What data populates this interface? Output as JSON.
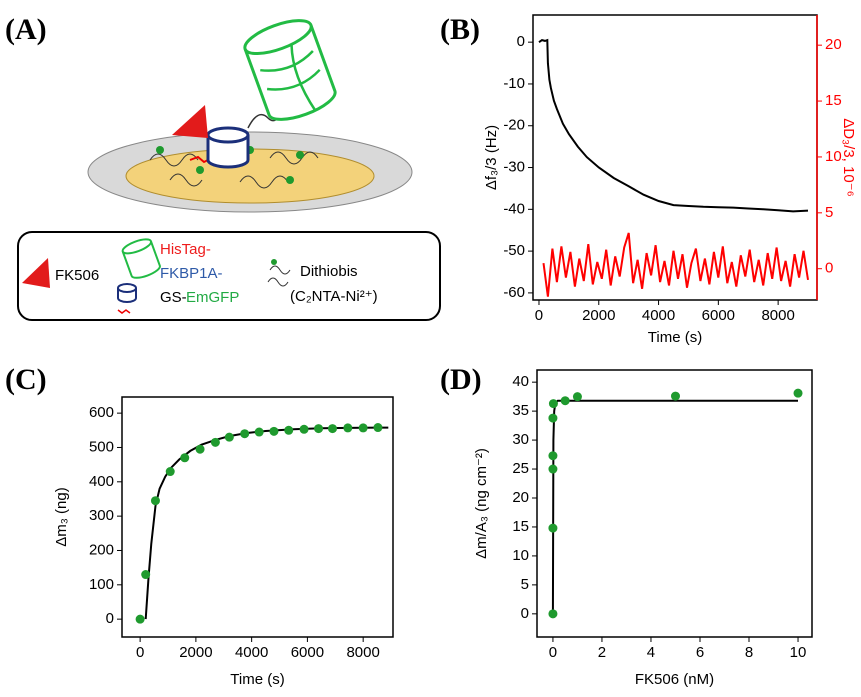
{
  "diagram": {
    "panel_label": "(A)",
    "legend": {
      "ligand": "FK506",
      "protein": [
        "HisTag-",
        "FKBP1A-",
        "GS-",
        "EmGFP"
      ],
      "linker": [
        "Dithiobis",
        "(C₂NTA-Ni²⁺)"
      ]
    }
  },
  "chart_data": [
    {
      "type": "line",
      "panel_label": "(B)",
      "x_label": "Time (s)",
      "y_label": "Δf₃/3 (Hz)",
      "y2_label": "ΔD₃/3, 10⁻⁶",
      "xlim": [
        -200,
        9300
      ],
      "xticks": [
        0,
        2000,
        4000,
        6000,
        8000
      ],
      "ylim": [
        -61.7,
        6.5
      ],
      "yticks": [
        -60,
        -50,
        -40,
        -30,
        -20,
        -10,
        0
      ],
      "y2lim": [
        -2.8,
        22.7
      ],
      "y2ticks": [
        0,
        5,
        10,
        15,
        20
      ],
      "y2color": "#ff0000",
      "series": [
        {
          "type": "line",
          "color": "#000000",
          "x": [
            0,
            100,
            200,
            280,
            300,
            350,
            400,
            500,
            600,
            800,
            1000,
            1300,
            1600,
            2000,
            2500,
            3000,
            3500,
            4000,
            4500,
            5000,
            5500,
            6000,
            6500,
            7000,
            7500,
            8000,
            8500,
            9000
          ],
          "values": [
            0,
            0.5,
            0.3,
            0.5,
            -5,
            -9,
            -11,
            -14,
            -16,
            -19.5,
            -22,
            -25,
            -27.5,
            -30,
            -32.5,
            -34.5,
            -36.5,
            -38,
            -39,
            -39.2,
            -39.4,
            -39.5,
            -39.6,
            -39.8,
            -40,
            -40.2,
            -40.5,
            -40.3
          ]
        },
        {
          "type": "line",
          "color": "#ff0000",
          "axis": "y2",
          "x": [
            150,
            300,
            450,
            600,
            750,
            900,
            1050,
            1200,
            1350,
            1500,
            1650,
            1800,
            1950,
            2100,
            2250,
            2400,
            2550,
            2700,
            2850,
            3000,
            3150,
            3300,
            3450,
            3600,
            3750,
            3900,
            4050,
            4200,
            4350,
            4500,
            4650,
            4800,
            4950,
            5100,
            5250,
            5400,
            5550,
            5700,
            5850,
            6000,
            6150,
            6300,
            6450,
            6600,
            6750,
            6900,
            7050,
            7200,
            7350,
            7500,
            7650,
            7800,
            7950,
            8100,
            8250,
            8400,
            8550,
            8700,
            8850,
            9000
          ],
          "values": [
            0.5,
            -2.5,
            1.8,
            -1.2,
            2.0,
            -0.8,
            1.5,
            -1.6,
            0.9,
            -1.1,
            2.2,
            -1.4,
            0.6,
            -0.9,
            1.7,
            -1.5,
            1.1,
            -0.7,
            1.9,
            3.2,
            -1.3,
            0.8,
            -1.8,
            1.4,
            -0.6,
            2.1,
            -1.2,
            0.7,
            -1.5,
            1.6,
            -0.9,
            1.3,
            -1.7,
            0.5,
            1.8,
            -1.1,
            0.9,
            -1.4,
            1.5,
            -0.8,
            2.0,
            -1.3,
            0.6,
            -1.6,
            1.2,
            -0.7,
            1.7,
            -1.2,
            0.8,
            -1.5,
            1.4,
            -0.9,
            1.9,
            -1.1,
            0.7,
            -1.6,
            1.3,
            -0.8,
            1.6,
            -1.0
          ]
        }
      ]
    },
    {
      "type": "scatter",
      "panel_label": "(C)",
      "x_label": "Time (s)",
      "y_label": "Δm₃ (ng)",
      "xlim": [
        -650,
        9070
      ],
      "xticks": [
        0,
        2000,
        4000,
        6000,
        8000
      ],
      "ylim": [
        -52,
        647
      ],
      "yticks": [
        0,
        100,
        200,
        300,
        400,
        500,
        600
      ],
      "series": [
        {
          "type": "line",
          "color": "#000000",
          "x": [
            200,
            250,
            300,
            400,
            550,
            700,
            900,
            1100,
            1400,
            1800,
            2200,
            2700,
            3200,
            3800,
            4500,
            5500,
            6500,
            7500,
            8500,
            8900
          ],
          "values": [
            0,
            60,
            120,
            220,
            330,
            380,
            415,
            440,
            465,
            490,
            508,
            522,
            533,
            542,
            548,
            553,
            556,
            557,
            558,
            558
          ]
        },
        {
          "type": "scatter",
          "color": "#1f9a2e",
          "x": [
            0,
            200,
            550,
            1080,
            1600,
            2150,
            2700,
            3200,
            3750,
            4270,
            4800,
            5330,
            5880,
            6400,
            6900,
            7450,
            8000,
            8530
          ],
          "values": [
            0,
            130,
            345,
            430,
            470,
            495,
            515,
            530,
            540,
            545,
            547,
            550,
            553,
            555,
            555,
            557,
            557,
            558
          ]
        }
      ]
    },
    {
      "type": "scatter",
      "panel_label": "(D)",
      "x_label": "FK506 (nM)",
      "y_label": "Δm/A₃ (ng cm⁻²)",
      "xlim": [
        -0.65,
        10.57
      ],
      "xticks": [
        0,
        2,
        4,
        6,
        8,
        10
      ],
      "ylim": [
        -4,
        42.1
      ],
      "yticks": [
        0,
        5,
        10,
        15,
        20,
        25,
        30,
        35,
        40
      ],
      "series": [
        {
          "type": "line",
          "color": "#000000",
          "x": [
            0,
            0.02,
            0.05,
            0.1,
            0.2,
            10
          ],
          "values": [
            0,
            30,
            35,
            36.4,
            36.8,
            36.8
          ]
        },
        {
          "type": "scatter",
          "color": "#1f9a2e",
          "x": [
            0,
            0,
            0,
            0,
            0,
            0.02,
            0.5,
            1,
            5,
            10
          ],
          "values": [
            0,
            14.8,
            25,
            27.3,
            33.8,
            36.3,
            36.8,
            37.5,
            37.6,
            38.1
          ]
        }
      ]
    }
  ]
}
